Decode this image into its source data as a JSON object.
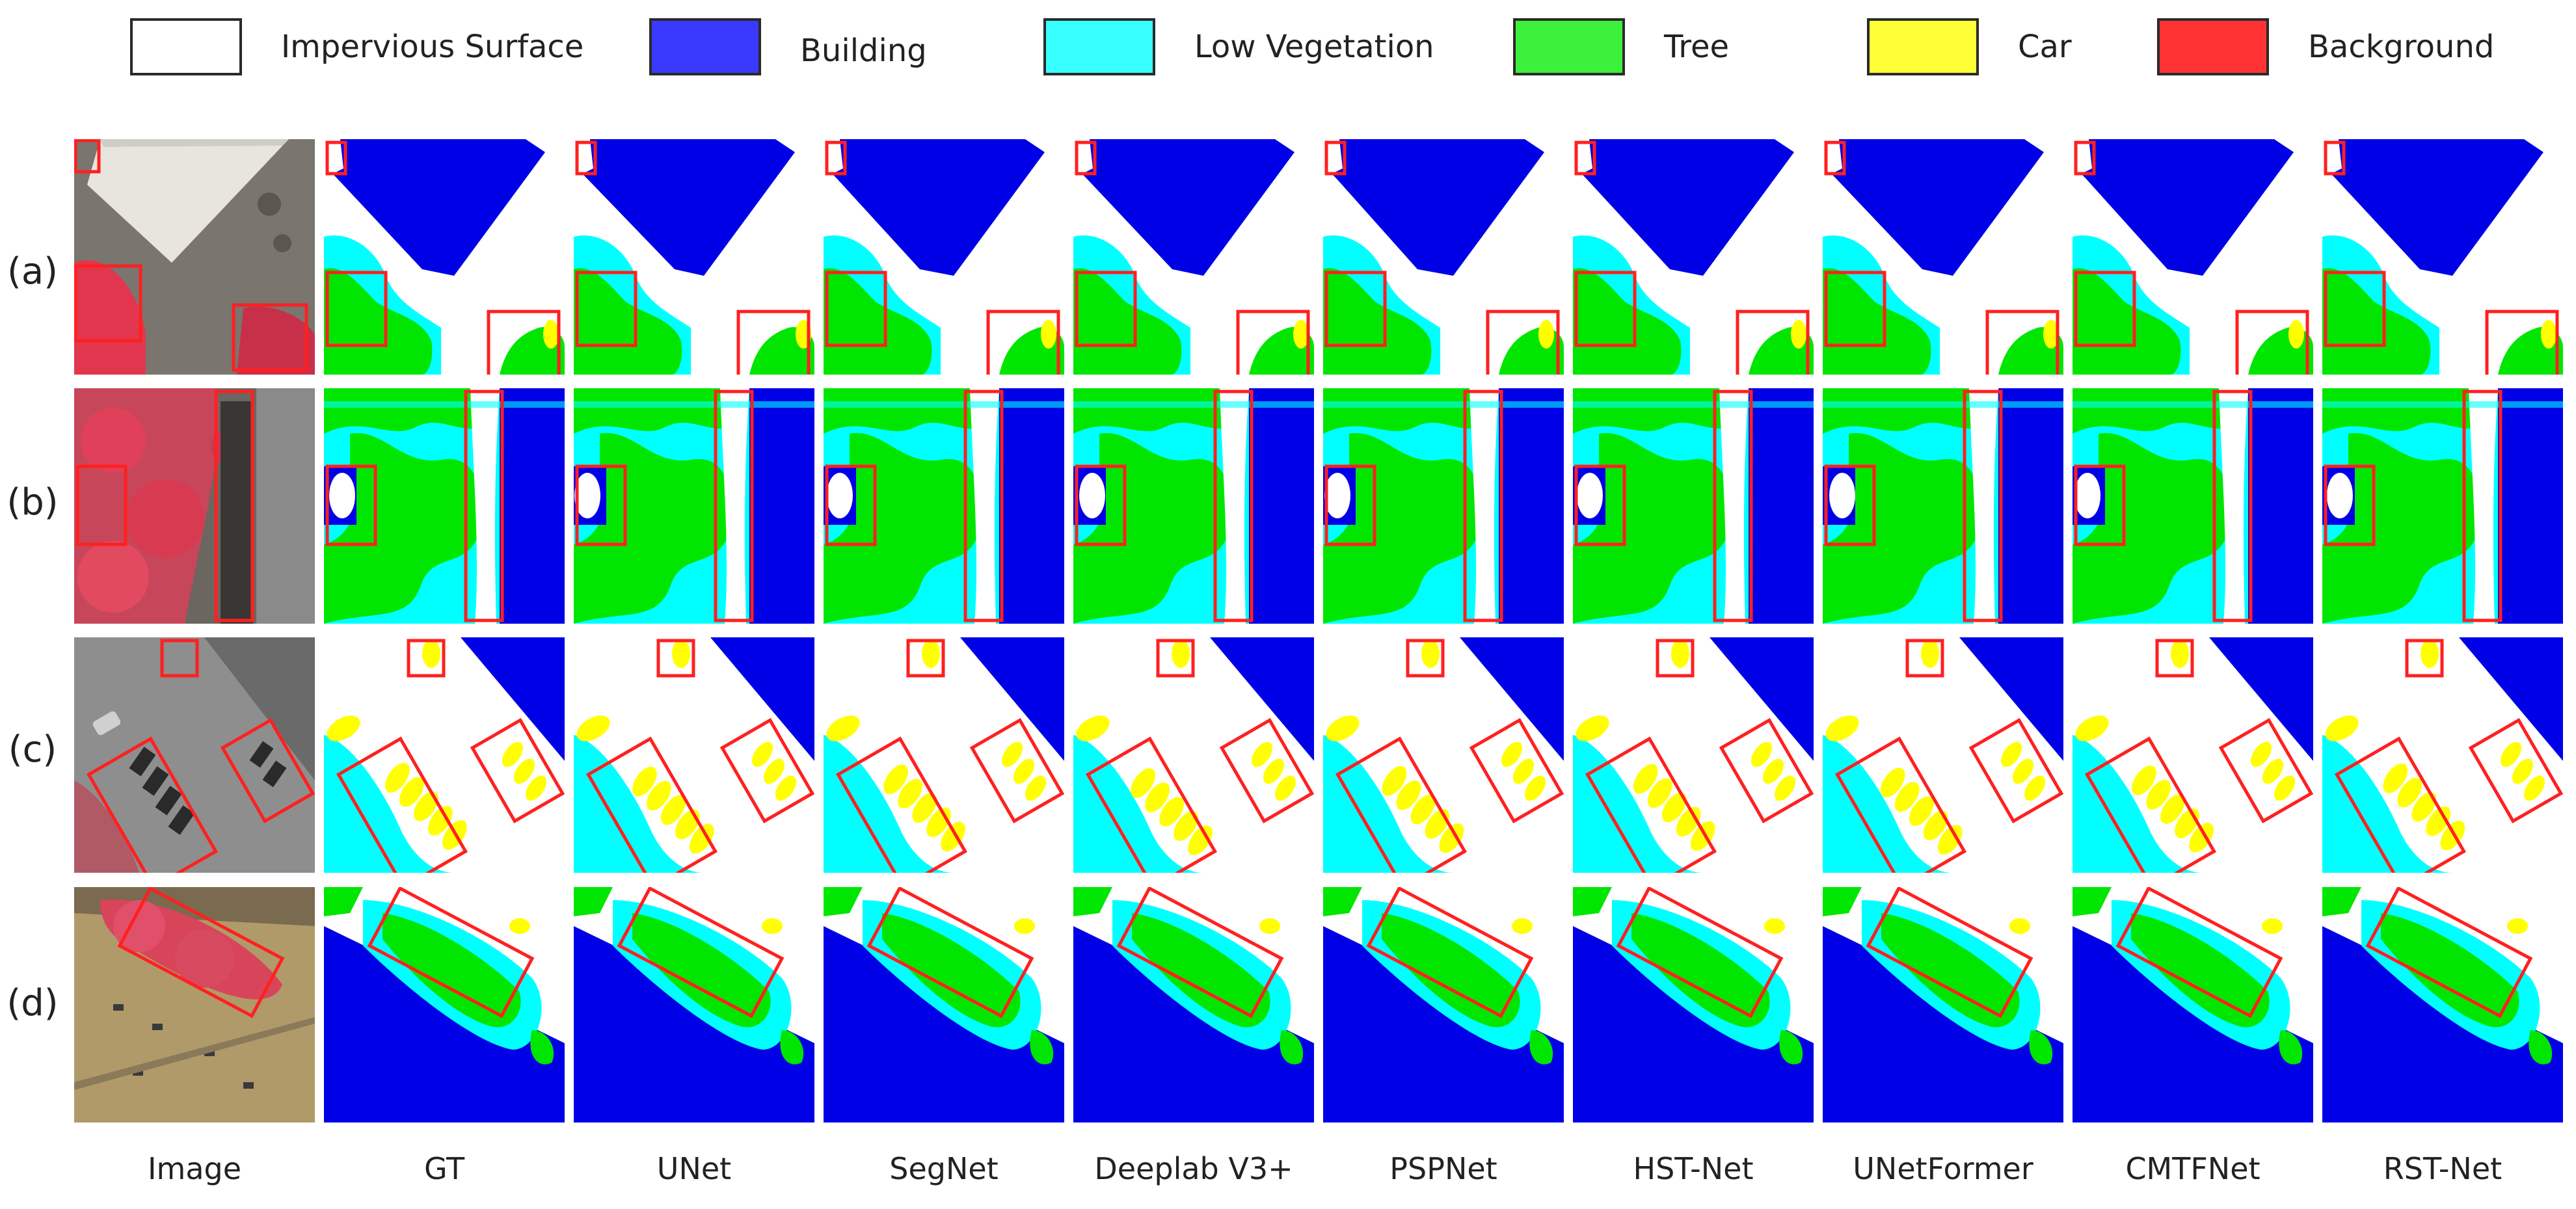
{
  "legend": [
    {
      "label": "Impervious Surface",
      "color": "#ffffff"
    },
    {
      "label": "Building",
      "color": "#0000e6"
    },
    {
      "label": "Low Vegetation",
      "color": "#00ffff"
    },
    {
      "label": "Tree",
      "color": "#00e600"
    },
    {
      "label": "Car",
      "color": "#ffff00"
    },
    {
      "label": "Background",
      "color": "#ff3333"
    }
  ],
  "rows": [
    {
      "label": "(a)"
    },
    {
      "label": "(b)"
    },
    {
      "label": "(c)"
    },
    {
      "label": "(d)"
    }
  ],
  "columns": [
    {
      "label": "Image"
    },
    {
      "label": "GT"
    },
    {
      "label": "UNet"
    },
    {
      "label": "SegNet"
    },
    {
      "label": "Deeplab V3+"
    },
    {
      "label": "PSPNet"
    },
    {
      "label": "HST-Net"
    },
    {
      "label": "UNetFormer"
    },
    {
      "label": "CMTFNet"
    },
    {
      "label": "RST-Net"
    }
  ]
}
